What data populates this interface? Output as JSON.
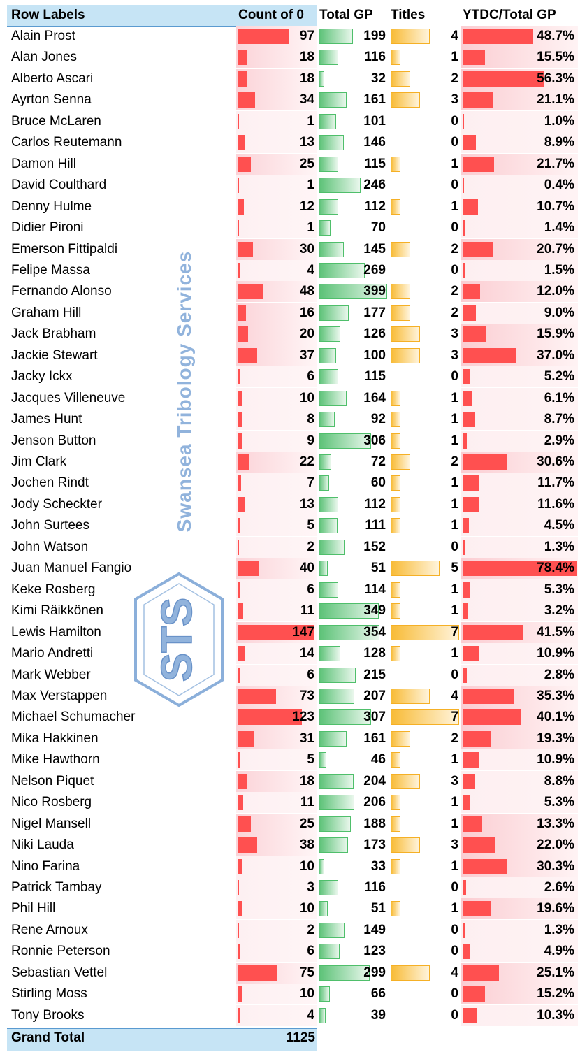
{
  "header": {
    "row_labels": "Row Labels",
    "count_of_0": "Count of 0",
    "total_gp": "Total GP",
    "titles": "Titles",
    "ytdc_total_gp": "YTDC/Total GP"
  },
  "rows": [
    {
      "name": "Alain Prost",
      "count": "97",
      "gp": "199",
      "titles": "4",
      "ytdc": "48.7%"
    },
    {
      "name": "Alan Jones",
      "count": "18",
      "gp": "116",
      "titles": "1",
      "ytdc": "15.5%"
    },
    {
      "name": "Alberto Ascari",
      "count": "18",
      "gp": "32",
      "titles": "2",
      "ytdc": "56.3%"
    },
    {
      "name": "Ayrton Senna",
      "count": "34",
      "gp": "161",
      "titles": "3",
      "ytdc": "21.1%"
    },
    {
      "name": "Bruce McLaren",
      "count": "1",
      "gp": "101",
      "titles": "0",
      "ytdc": "1.0%"
    },
    {
      "name": "Carlos Reutemann",
      "count": "13",
      "gp": "146",
      "titles": "0",
      "ytdc": "8.9%"
    },
    {
      "name": "Damon Hill",
      "count": "25",
      "gp": "115",
      "titles": "1",
      "ytdc": "21.7%"
    },
    {
      "name": "David Coulthard",
      "count": "1",
      "gp": "246",
      "titles": "0",
      "ytdc": "0.4%"
    },
    {
      "name": "Denny Hulme",
      "count": "12",
      "gp": "112",
      "titles": "1",
      "ytdc": "10.7%"
    },
    {
      "name": "Didier Pironi",
      "count": "1",
      "gp": "70",
      "titles": "0",
      "ytdc": "1.4%"
    },
    {
      "name": "Emerson Fittipaldi",
      "count": "30",
      "gp": "145",
      "titles": "2",
      "ytdc": "20.7%"
    },
    {
      "name": "Felipe Massa",
      "count": "4",
      "gp": "269",
      "titles": "0",
      "ytdc": "1.5%"
    },
    {
      "name": "Fernando Alonso",
      "count": "48",
      "gp": "399",
      "titles": "2",
      "ytdc": "12.0%"
    },
    {
      "name": "Graham Hill",
      "count": "16",
      "gp": "177",
      "titles": "2",
      "ytdc": "9.0%"
    },
    {
      "name": "Jack Brabham",
      "count": "20",
      "gp": "126",
      "titles": "3",
      "ytdc": "15.9%"
    },
    {
      "name": "Jackie Stewart",
      "count": "37",
      "gp": "100",
      "titles": "3",
      "ytdc": "37.0%"
    },
    {
      "name": "Jacky Ickx",
      "count": "6",
      "gp": "115",
      "titles": "0",
      "ytdc": "5.2%"
    },
    {
      "name": "Jacques Villeneuve",
      "count": "10",
      "gp": "164",
      "titles": "1",
      "ytdc": "6.1%"
    },
    {
      "name": "James Hunt",
      "count": "8",
      "gp": "92",
      "titles": "1",
      "ytdc": "8.7%"
    },
    {
      "name": "Jenson Button",
      "count": "9",
      "gp": "306",
      "titles": "1",
      "ytdc": "2.9%"
    },
    {
      "name": "Jim Clark",
      "count": "22",
      "gp": "72",
      "titles": "2",
      "ytdc": "30.6%"
    },
    {
      "name": "Jochen Rindt",
      "count": "7",
      "gp": "60",
      "titles": "1",
      "ytdc": "11.7%"
    },
    {
      "name": "Jody Scheckter",
      "count": "13",
      "gp": "112",
      "titles": "1",
      "ytdc": "11.6%"
    },
    {
      "name": "John Surtees",
      "count": "5",
      "gp": "111",
      "titles": "1",
      "ytdc": "4.5%"
    },
    {
      "name": "John Watson",
      "count": "2",
      "gp": "152",
      "titles": "0",
      "ytdc": "1.3%"
    },
    {
      "name": "Juan Manuel Fangio",
      "count": "40",
      "gp": "51",
      "titles": "5",
      "ytdc": "78.4%"
    },
    {
      "name": "Keke Rosberg",
      "count": "6",
      "gp": "114",
      "titles": "1",
      "ytdc": "5.3%"
    },
    {
      "name": "Kimi Räikkönen",
      "count": "11",
      "gp": "349",
      "titles": "1",
      "ytdc": "3.2%"
    },
    {
      "name": "Lewis Hamilton",
      "count": "147",
      "gp": "354",
      "titles": "7",
      "ytdc": "41.5%"
    },
    {
      "name": "Mario Andretti",
      "count": "14",
      "gp": "128",
      "titles": "1",
      "ytdc": "10.9%"
    },
    {
      "name": "Mark Webber",
      "count": "6",
      "gp": "215",
      "titles": "0",
      "ytdc": "2.8%"
    },
    {
      "name": "Max Verstappen",
      "count": "73",
      "gp": "207",
      "titles": "4",
      "ytdc": "35.3%"
    },
    {
      "name": "Michael Schumacher",
      "count": "123",
      "gp": "307",
      "titles": "7",
      "ytdc": "40.1%"
    },
    {
      "name": "Mika Hakkinen",
      "count": "31",
      "gp": "161",
      "titles": "2",
      "ytdc": "19.3%"
    },
    {
      "name": "Mike Hawthorn",
      "count": "5",
      "gp": "46",
      "titles": "1",
      "ytdc": "10.9%"
    },
    {
      "name": "Nelson Piquet",
      "count": "18",
      "gp": "204",
      "titles": "3",
      "ytdc": "8.8%"
    },
    {
      "name": "Nico Rosberg",
      "count": "11",
      "gp": "206",
      "titles": "1",
      "ytdc": "5.3%"
    },
    {
      "name": "Nigel Mansell",
      "count": "25",
      "gp": "188",
      "titles": "1",
      "ytdc": "13.3%"
    },
    {
      "name": "Niki Lauda",
      "count": "38",
      "gp": "173",
      "titles": "3",
      "ytdc": "22.0%"
    },
    {
      "name": "Nino Farina",
      "count": "10",
      "gp": "33",
      "titles": "1",
      "ytdc": "30.3%"
    },
    {
      "name": "Patrick Tambay",
      "count": "3",
      "gp": "116",
      "titles": "0",
      "ytdc": "2.6%"
    },
    {
      "name": "Phil Hill",
      "count": "10",
      "gp": "51",
      "titles": "1",
      "ytdc": "19.6%"
    },
    {
      "name": "Rene Arnoux",
      "count": "2",
      "gp": "149",
      "titles": "0",
      "ytdc": "1.3%"
    },
    {
      "name": "Ronnie Peterson",
      "count": "6",
      "gp": "123",
      "titles": "0",
      "ytdc": "4.9%"
    },
    {
      "name": "Sebastian Vettel",
      "count": "75",
      "gp": "299",
      "titles": "4",
      "ytdc": "25.1%"
    },
    {
      "name": "Stirling Moss",
      "count": "10",
      "gp": "66",
      "titles": "0",
      "ytdc": "15.2%"
    },
    {
      "name": "Tony Brooks",
      "count": "4",
      "gp": "39",
      "titles": "0",
      "ytdc": "10.3%"
    }
  ],
  "footer": {
    "grand_total_label": "Grand Total",
    "grand_total_value": "1125"
  },
  "watermark": {
    "text": "Swansea Tribology Services",
    "logo_text": "STS",
    "color": "#7ea6d6"
  },
  "colors": {
    "header_band": "#c6e4f5",
    "red_bar": "#ff5050",
    "green_bar": "#5cc277",
    "orange_bar": "#f8bb36"
  },
  "scales": {
    "count_max": 147,
    "gp_max": 399,
    "titles_max": 7,
    "ytdc_max": 78.4
  }
}
